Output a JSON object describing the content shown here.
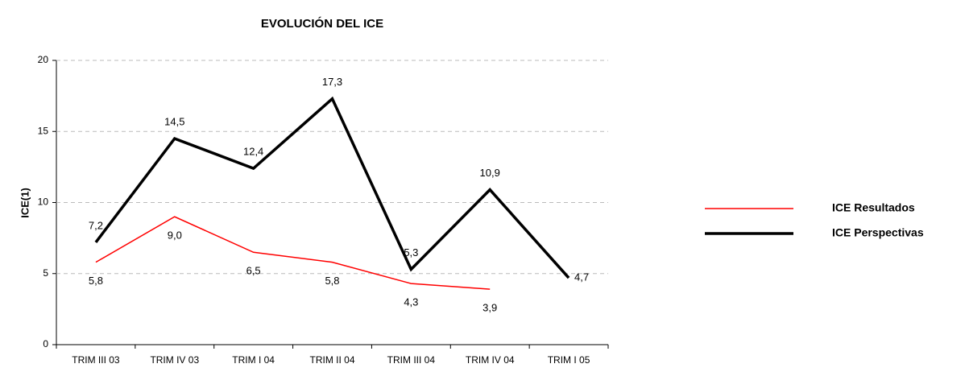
{
  "chart_data": {
    "type": "line",
    "title": "EVOLUCIÓN DEL ICE",
    "y_label": "ICE(1)",
    "categories": [
      "TRIM III 03",
      "TRIM IV 03",
      "TRIM I 04",
      "TRIM II 04",
      "TRIM III 04",
      "TRIM IV 04",
      "TRIM I 05"
    ],
    "series": [
      {
        "name": "ICE Resultados",
        "color": "#ff0000",
        "width": 1.5,
        "values": [
          5.8,
          9.0,
          6.5,
          5.8,
          4.3,
          3.9,
          null
        ],
        "value_labels": [
          "5,8",
          "9,0",
          "6,5",
          "5,8",
          "4,3",
          "3,9",
          null
        ]
      },
      {
        "name": "ICE Perspectivas",
        "color": "#000000",
        "width": 3.5,
        "values": [
          7.2,
          14.5,
          12.4,
          17.3,
          5.3,
          10.9,
          4.7
        ],
        "value_labels": [
          "7,2",
          "14,5",
          "12,4",
          "17,3",
          "5,3",
          "10,9",
          "4,7"
        ]
      }
    ],
    "ylim": [
      0,
      20
    ],
    "yticks": [
      0,
      5,
      10,
      15,
      20
    ],
    "grid": true,
    "legend": "right"
  }
}
